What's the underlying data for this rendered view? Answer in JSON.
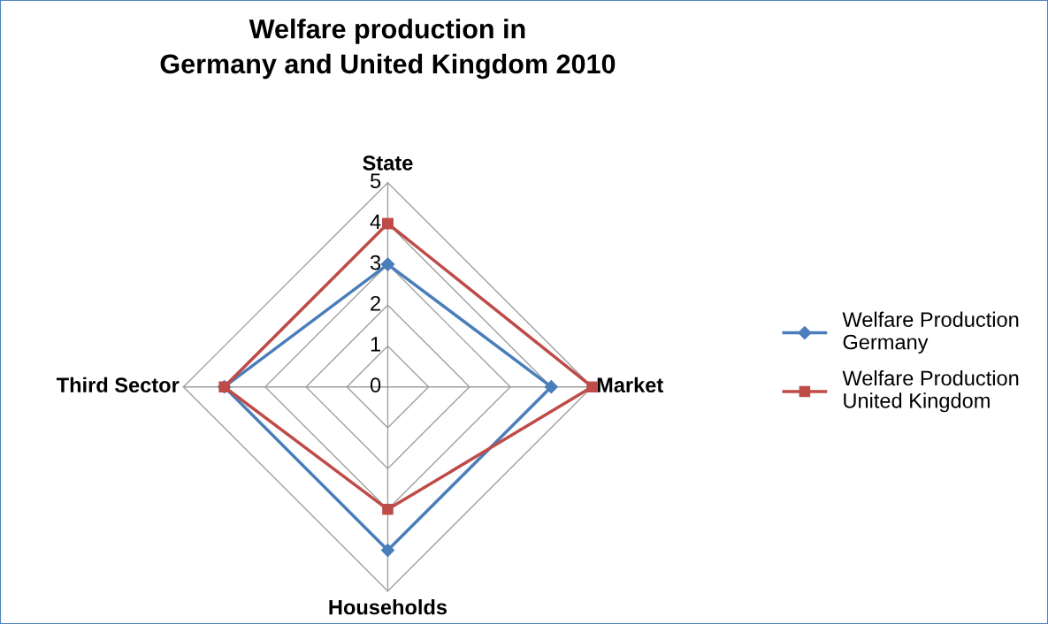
{
  "chart_data": {
    "type": "radar",
    "title": "Welfare production in\nGermany and United Kingdom 2010",
    "categories": [
      "State",
      "Market",
      "Households",
      "Third Sector"
    ],
    "ylim": [
      0,
      5
    ],
    "yticks": [
      0,
      1,
      2,
      3,
      4,
      5
    ],
    "grid": true,
    "legend": "right",
    "line_style": "solid",
    "series": [
      {
        "name": "Welfare Production\nGermany",
        "color": "#4a7ebb",
        "marker": "diamond",
        "values": [
          3,
          4,
          4,
          4
        ]
      },
      {
        "name": "Welfare Production\nUnited Kingdom",
        "color": "#be4b48",
        "marker": "square",
        "values": [
          4,
          5,
          3,
          4
        ]
      }
    ]
  }
}
